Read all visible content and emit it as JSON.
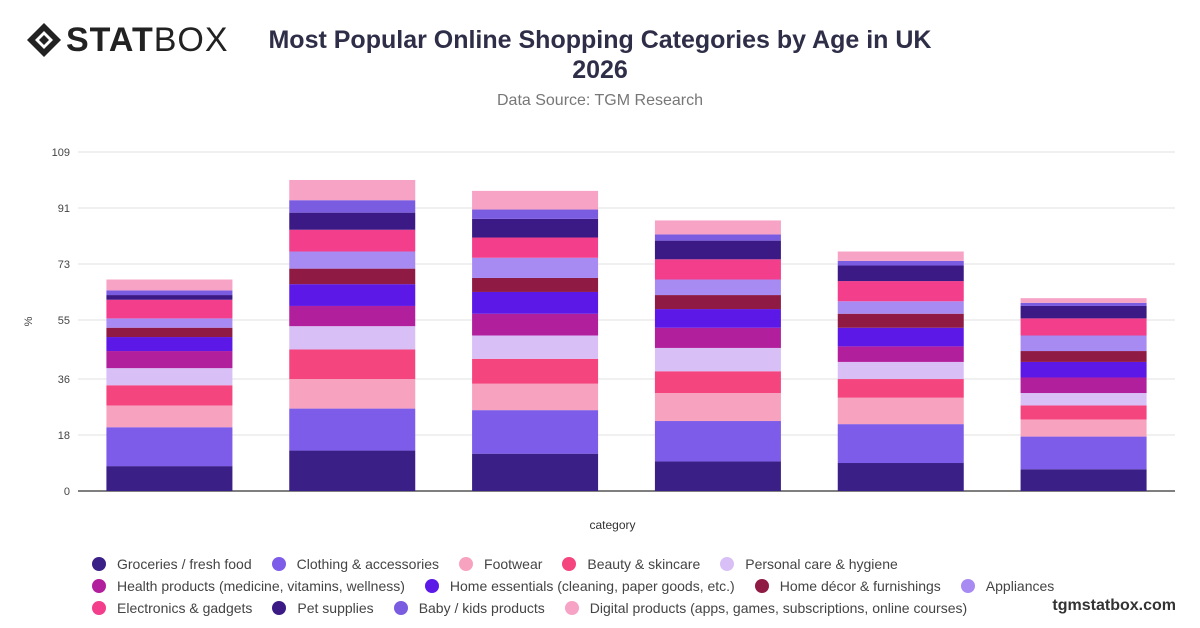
{
  "header": {
    "logo_text_bold": "STAT",
    "logo_text_light": "BOX",
    "title_line1": "Most Popular Online Shopping Categories by Age in UK",
    "title_line2": "2026",
    "subtitle": "Data Source: TGM Research"
  },
  "footer": {
    "site": "tgmstatbox.com"
  },
  "chart_data": {
    "type": "bar",
    "stacked": true,
    "xlabel": "category",
    "ylabel": "%",
    "ylim": [
      0,
      109
    ],
    "yticks": [
      0,
      18,
      36,
      55,
      73,
      91,
      109
    ],
    "grid": true,
    "legend_position": "bottom",
    "categories": [
      "",
      "",
      "",
      "",
      "",
      ""
    ],
    "series": [
      {
        "name": "Groceries / fresh food",
        "color": "#3a1f87",
        "values": [
          8,
          13,
          12,
          9.5,
          9,
          7
        ]
      },
      {
        "name": "Clothing & accessories",
        "color": "#7c5ce8",
        "values": [
          12.5,
          13.5,
          14,
          13,
          12.5,
          10.5
        ]
      },
      {
        "name": "Footwear",
        "color": "#f7a3c0",
        "values": [
          7,
          9.5,
          8.5,
          9,
          8.5,
          5.5
        ]
      },
      {
        "name": "Beauty & skincare",
        "color": "#f5457f",
        "values": [
          6.5,
          9.5,
          8,
          7,
          6,
          4.5
        ]
      },
      {
        "name": "Personal care & hygiene",
        "color": "#d8c0f7",
        "values": [
          5.5,
          7.5,
          7.5,
          7.5,
          5.5,
          4
        ]
      },
      {
        "name": "Health products (medicine, vitamins, wellness)",
        "color": "#b21f9c",
        "values": [
          5.5,
          6.5,
          7,
          6.5,
          5,
          5
        ]
      },
      {
        "name": "Home essentials (cleaning, paper goods, etc.)",
        "color": "#5b18e6",
        "values": [
          4.5,
          7,
          7,
          6,
          6,
          5
        ]
      },
      {
        "name": "Home décor & furnishings",
        "color": "#8f1a44",
        "values": [
          3,
          5,
          4.5,
          4.5,
          4.5,
          3.5
        ]
      },
      {
        "name": "Appliances",
        "color": "#a78bf2",
        "values": [
          3,
          5.5,
          6.5,
          5,
          4,
          5
        ]
      },
      {
        "name": "Electronics & gadgets",
        "color": "#f23e8b",
        "values": [
          6,
          7,
          6.5,
          6.5,
          6.5,
          5.5
        ]
      },
      {
        "name": "Pet supplies",
        "color": "#3b1a85",
        "values": [
          1.5,
          5.5,
          6,
          6,
          5,
          4
        ]
      },
      {
        "name": "Baby / kids products",
        "color": "#7a5ce0",
        "values": [
          1.5,
          4,
          3,
          2,
          1.5,
          1
        ]
      },
      {
        "name": "Digital products (apps, games, subscriptions, online courses)",
        "color": "#f6a3c6",
        "values": [
          3.5,
          6.5,
          6,
          4.5,
          3,
          1.5
        ]
      }
    ]
  }
}
